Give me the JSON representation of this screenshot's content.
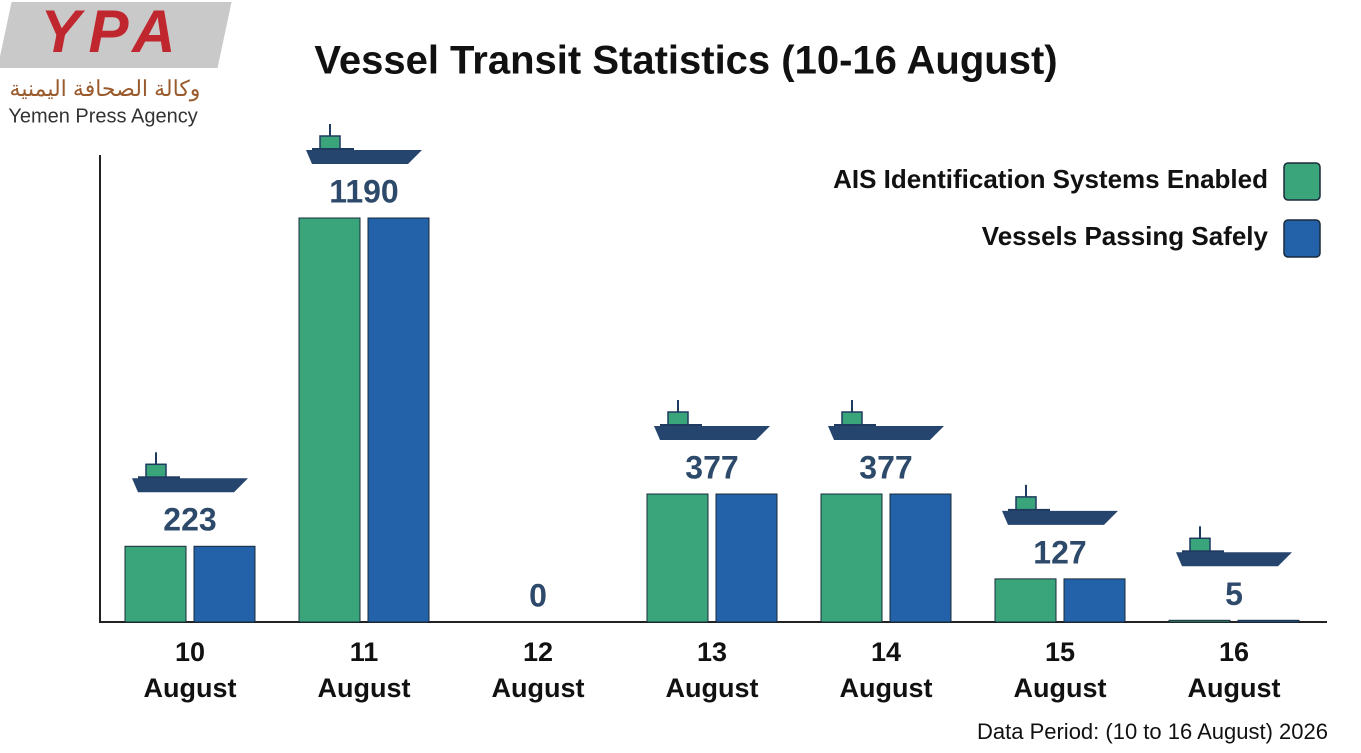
{
  "chart_data": {
    "type": "bar",
    "title": "Vessel Transit Statistics (10-16 August)",
    "categories": [
      "10 August",
      "11 August",
      "12 August",
      "13 August",
      "14 August",
      "15 August",
      "16 August"
    ],
    "series": [
      {
        "name": "AIS Identification Systems Enabled",
        "color": "#3aa57a",
        "values": [
          223,
          1190,
          0,
          377,
          377,
          127,
          5
        ]
      },
      {
        "name": "Vessels Passing Safely",
        "color": "#2361a9",
        "values": [
          223,
          1190,
          0,
          377,
          377,
          127,
          5
        ]
      }
    ],
    "legend": "top-right",
    "footnote": "Data Period: (10 to 16 August) 2026"
  },
  "logo": {
    "mark": "YPA",
    "arabic": "وكالة الصحافة اليمنية",
    "english": "Yemen Press Agency"
  }
}
